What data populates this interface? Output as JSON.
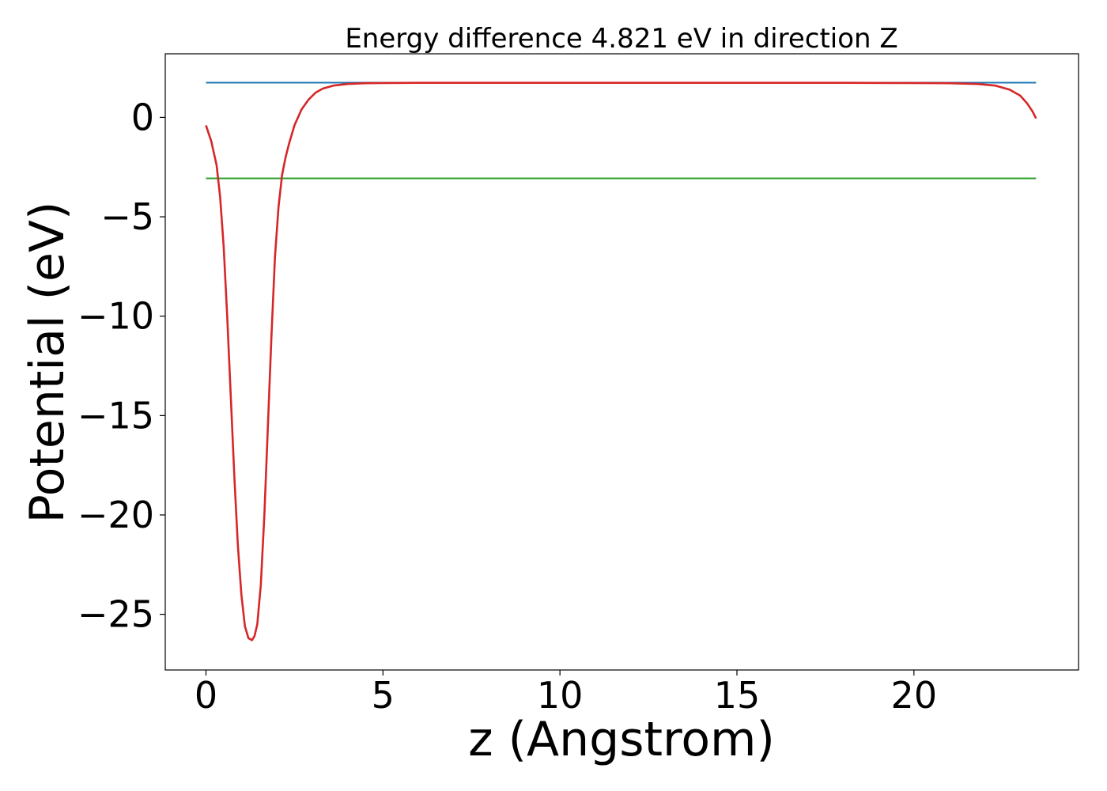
{
  "chart_data": {
    "type": "line",
    "title": "Energy difference 4.821 eV in direction Z",
    "xlabel": "z (Angstrom)",
    "ylabel": "Potential (eV)",
    "xlim": [
      -1.15,
      24.65
    ],
    "ylim": [
      -27.8,
      3.2
    ],
    "x_ticks": [
      0,
      5,
      10,
      15,
      20
    ],
    "x_tick_labels": [
      "0",
      "5",
      "10",
      "15",
      "20"
    ],
    "y_ticks": [
      0,
      -5,
      -10,
      -15,
      -20,
      -25
    ],
    "y_tick_labels": [
      "0",
      "−5",
      "−10",
      "−15",
      "−20",
      "−25"
    ],
    "grid": false,
    "series": [
      {
        "color": "#1f77b4",
        "x": [
          0,
          23.45
        ],
        "y": [
          1.75,
          1.75
        ]
      },
      {
        "color": "#2ca02c",
        "x": [
          0,
          23.45
        ],
        "y": [
          -3.07,
          -3.07
        ]
      },
      {
        "color": "#d62728",
        "x": [
          0,
          0.15,
          0.3,
          0.4,
          0.5,
          0.6,
          0.7,
          0.8,
          0.9,
          1.0,
          1.1,
          1.2,
          1.3,
          1.37,
          1.45,
          1.55,
          1.65,
          1.75,
          1.85,
          1.95,
          2.05,
          2.15,
          2.25,
          2.35,
          2.5,
          2.7,
          2.9,
          3.1,
          3.3,
          3.6,
          4.0,
          4.5,
          5.0,
          6.0,
          8.0,
          10.0,
          12.0,
          14.0,
          16.0,
          18.0,
          20.0,
          21.0,
          21.8,
          22.3,
          22.7,
          23.0,
          23.2,
          23.35,
          23.45
        ],
        "y": [
          -0.4,
          -1.2,
          -2.4,
          -4.0,
          -6.5,
          -10.0,
          -14.0,
          -18.0,
          -21.5,
          -24.0,
          -25.6,
          -26.2,
          -26.3,
          -26.1,
          -25.5,
          -23.5,
          -20.0,
          -15.5,
          -11.0,
          -7.0,
          -4.5,
          -2.9,
          -2.0,
          -1.3,
          -0.4,
          0.4,
          0.9,
          1.25,
          1.45,
          1.6,
          1.68,
          1.72,
          1.73,
          1.74,
          1.74,
          1.74,
          1.74,
          1.74,
          1.74,
          1.74,
          1.73,
          1.72,
          1.68,
          1.6,
          1.4,
          1.1,
          0.7,
          0.3,
          -0.05
        ]
      }
    ]
  }
}
